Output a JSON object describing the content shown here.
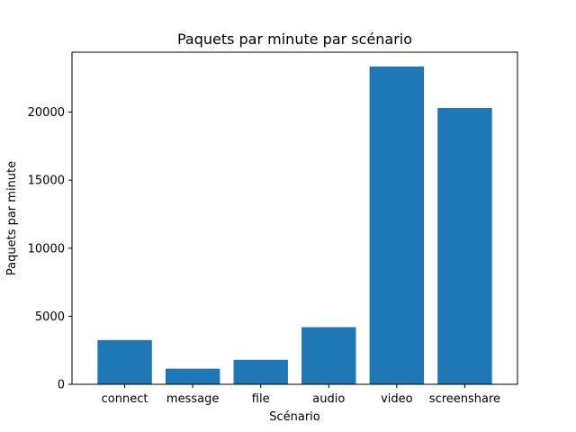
{
  "chart_data": {
    "type": "bar",
    "title": "Paquets par minute par scénario",
    "xlabel": "Scénario",
    "ylabel": "Paquets par minute",
    "categories": [
      "connect",
      "message",
      "file",
      "audio",
      "video",
      "screenshare"
    ],
    "values": [
      3250,
      1150,
      1800,
      4200,
      23350,
      20300
    ],
    "ylim": [
      0,
      24400
    ],
    "yticks": [
      0,
      5000,
      10000,
      15000,
      20000
    ],
    "color": "#1f77b4",
    "grid": false,
    "legend": "none"
  }
}
